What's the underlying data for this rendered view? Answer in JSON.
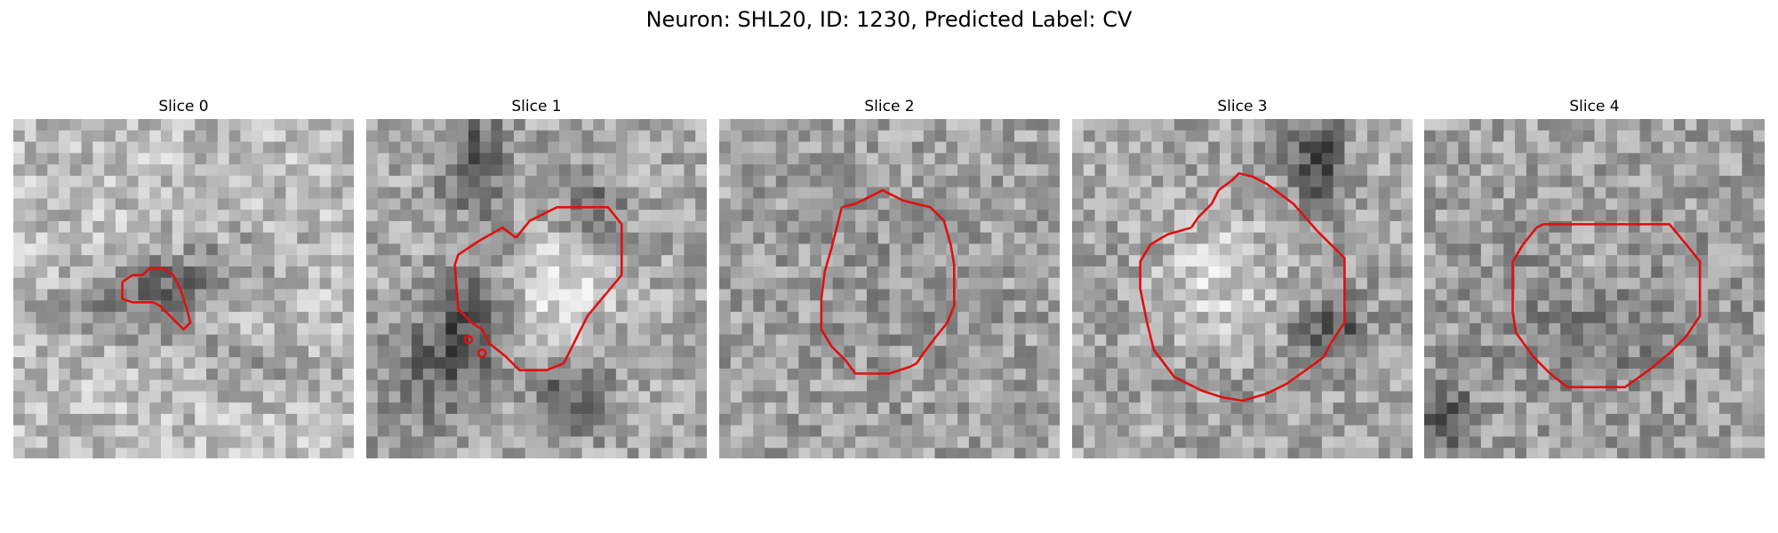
{
  "figure": {
    "title": "Neuron: SHL20, ID: 1230, Predicted Label: CV"
  },
  "colors": {
    "contour": "#e01010",
    "background": "#ffffff"
  },
  "colormap": "grayscale",
  "panels": [
    {
      "title": "Slice 0"
    },
    {
      "title": "Slice 1"
    },
    {
      "title": "Slice 2"
    },
    {
      "title": "Slice 3"
    },
    {
      "title": "Slice 4"
    }
  ]
}
